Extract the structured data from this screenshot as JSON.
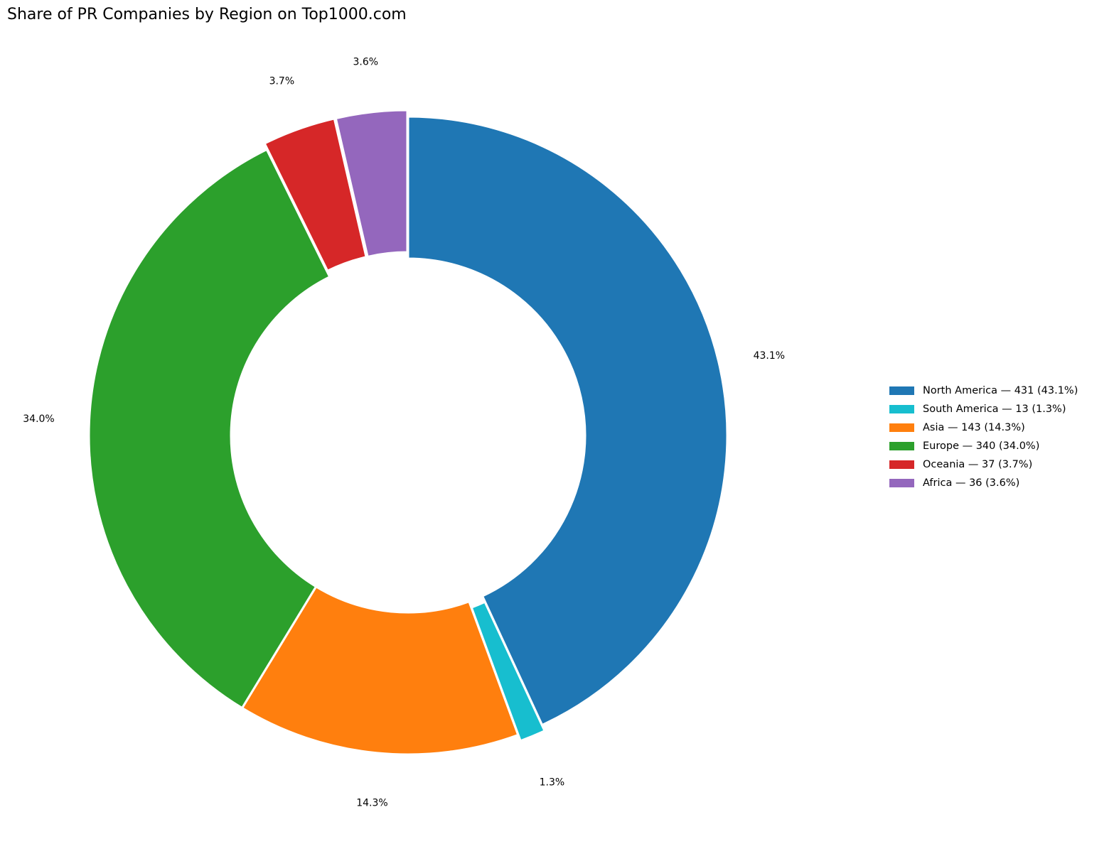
{
  "chart_data": {
    "type": "pie",
    "subtype": "donut",
    "title": "Share of PR Companies by Region on Top1000.com",
    "start_angle": "top",
    "direction": "clockwise",
    "exploded": [
      "South America",
      "Oceania",
      "Africa"
    ],
    "legend_placement": "right",
    "slices": [
      {
        "label": "North America",
        "value": 431,
        "pct_label": "43.1%",
        "legend": "North America — 431 (43.1%)",
        "color": "#1f77b4"
      },
      {
        "label": "South America",
        "value": 13,
        "pct_label": "1.3%",
        "legend": "South America — 13 (1.3%)",
        "color": "#17becf"
      },
      {
        "label": "Asia",
        "value": 143,
        "pct_label": "14.3%",
        "legend": "Asia — 143 (14.3%)",
        "color": "#ff7f0e"
      },
      {
        "label": "Europe",
        "value": 340,
        "pct_label": "34.0%",
        "legend": "Europe — 340 (34.0%)",
        "color": "#2ca02c"
      },
      {
        "label": "Oceania",
        "value": 37,
        "pct_label": "3.7%",
        "legend": "Oceania — 37 (3.7%)",
        "color": "#d62728"
      },
      {
        "label": "Africa",
        "value": 36,
        "pct_label": "3.6%",
        "legend": "Africa — 36 (3.6%)",
        "color": "#9467bd"
      }
    ]
  }
}
